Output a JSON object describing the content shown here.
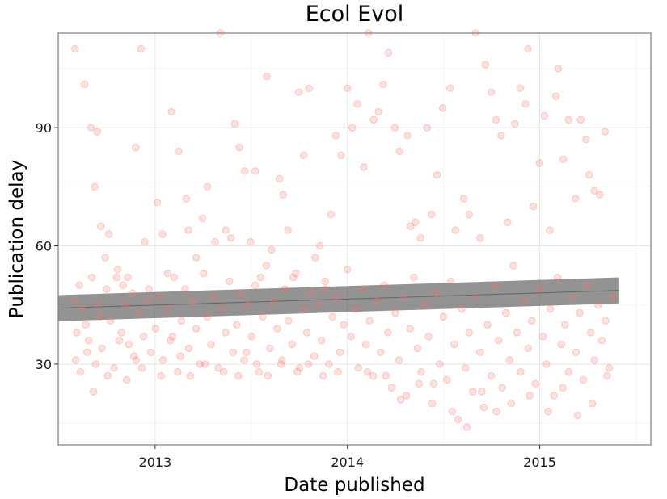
{
  "chart_data": {
    "type": "scatter",
    "title": "Ecol Evol",
    "xlabel": "Date published",
    "ylabel": "Publication delay",
    "x_type": "date",
    "xlim": [
      "2012-07-01",
      "2015-07-31"
    ],
    "ylim": [
      9.5,
      114
    ],
    "x_ticks": [
      {
        "date": "2013-01-01",
        "label": "2013"
      },
      {
        "date": "2014-01-01",
        "label": "2014"
      },
      {
        "date": "2015-01-01",
        "label": "2015"
      }
    ],
    "y_ticks": [
      30,
      60,
      90
    ],
    "grid": true,
    "point_color": "#f8766d",
    "trend_color": "#595959",
    "trend": {
      "x": [
        "2012-07-01",
        "2015-06-01"
      ],
      "y": [
        44.2,
        48.7
      ],
      "band_halfwidth": 3.3
    },
    "series": [
      {
        "points": [
          [
            "2012-08-02",
            110
          ],
          [
            "2012-08-20",
            101
          ],
          [
            "2012-09-01",
            90
          ],
          [
            "2012-09-08",
            75
          ],
          [
            "2012-09-13",
            89
          ],
          [
            "2012-09-20",
            65
          ],
          [
            "2012-09-28",
            57
          ],
          [
            "2012-10-05",
            63
          ],
          [
            "2012-10-20",
            52
          ],
          [
            "2012-11-01",
            50
          ],
          [
            "2012-11-10",
            52
          ],
          [
            "2012-11-25",
            85
          ],
          [
            "2012-12-05",
            110
          ],
          [
            "2012-12-12",
            61
          ],
          [
            "2012-12-20",
            49
          ],
          [
            "2013-01-05",
            71
          ],
          [
            "2013-01-15",
            63
          ],
          [
            "2013-01-25",
            53
          ],
          [
            "2013-02-01",
            94
          ],
          [
            "2013-02-15",
            84
          ],
          [
            "2013-03-01",
            72
          ],
          [
            "2013-03-05",
            64
          ],
          [
            "2013-03-20",
            57
          ],
          [
            "2013-04-01",
            67
          ],
          [
            "2013-04-10",
            75
          ],
          [
            "2013-04-25",
            61
          ],
          [
            "2013-05-05",
            114
          ],
          [
            "2013-05-15",
            64
          ],
          [
            "2013-05-25",
            62
          ],
          [
            "2013-06-01",
            91
          ],
          [
            "2013-06-10",
            85
          ],
          [
            "2013-06-20",
            79
          ],
          [
            "2013-07-01",
            61
          ],
          [
            "2013-07-10",
            79
          ],
          [
            "2013-07-20",
            52
          ],
          [
            "2013-08-01",
            103
          ],
          [
            "2013-08-10",
            59
          ],
          [
            "2013-08-25",
            77
          ],
          [
            "2013-09-01",
            73
          ],
          [
            "2013-09-10",
            64
          ],
          [
            "2013-09-20",
            52
          ],
          [
            "2013-10-01",
            99
          ],
          [
            "2013-10-10",
            83
          ],
          [
            "2013-10-20",
            100
          ],
          [
            "2013-11-01",
            57
          ],
          [
            "2013-11-10",
            60
          ],
          [
            "2013-11-20",
            49
          ],
          [
            "2013-12-01",
            68
          ],
          [
            "2013-12-10",
            88
          ],
          [
            "2013-12-20",
            83
          ],
          [
            "2014-01-01",
            100
          ],
          [
            "2014-01-10",
            90
          ],
          [
            "2014-01-20",
            96
          ],
          [
            "2014-02-01",
            80
          ],
          [
            "2014-02-10",
            114
          ],
          [
            "2014-02-20",
            92
          ],
          [
            "2014-03-01",
            94
          ],
          [
            "2014-03-10",
            101
          ],
          [
            "2014-03-20",
            109
          ],
          [
            "2014-04-01",
            90
          ],
          [
            "2014-04-10",
            84
          ],
          [
            "2014-04-25",
            88
          ],
          [
            "2014-05-01",
            65
          ],
          [
            "2014-05-10",
            66
          ],
          [
            "2014-05-20",
            62
          ],
          [
            "2014-06-01",
            90
          ],
          [
            "2014-06-10",
            68
          ],
          [
            "2014-06-20",
            78
          ],
          [
            "2014-07-01",
            95
          ],
          [
            "2014-07-15",
            100
          ],
          [
            "2014-07-25",
            64
          ],
          [
            "2014-08-10",
            72
          ],
          [
            "2014-08-20",
            68
          ],
          [
            "2014-09-01",
            114
          ],
          [
            "2014-09-10",
            62
          ],
          [
            "2014-09-20",
            106
          ],
          [
            "2014-10-01",
            99
          ],
          [
            "2014-10-10",
            92
          ],
          [
            "2014-10-20",
            88
          ],
          [
            "2014-11-01",
            66
          ],
          [
            "2014-11-15",
            91
          ],
          [
            "2014-11-25",
            100
          ],
          [
            "2014-12-05",
            96
          ],
          [
            "2014-12-10",
            110
          ],
          [
            "2014-12-20",
            70
          ],
          [
            "2015-01-01",
            81
          ],
          [
            "2015-01-10",
            93
          ],
          [
            "2015-01-20",
            64
          ],
          [
            "2015-02-01",
            98
          ],
          [
            "2015-02-05",
            105
          ],
          [
            "2015-02-15",
            82
          ],
          [
            "2015-02-25",
            92
          ],
          [
            "2015-03-10",
            72
          ],
          [
            "2015-03-20",
            92
          ],
          [
            "2015-03-30",
            87
          ],
          [
            "2015-04-05",
            78
          ],
          [
            "2015-04-15",
            74
          ],
          [
            "2015-04-25",
            73
          ],
          [
            "2015-05-05",
            89
          ],
          [
            "2012-08-01",
            46
          ],
          [
            "2012-08-05",
            38
          ],
          [
            "2012-08-10",
            50
          ],
          [
            "2012-08-15",
            44
          ],
          [
            "2012-08-22",
            40
          ],
          [
            "2012-08-28",
            36
          ],
          [
            "2012-09-03",
            52
          ],
          [
            "2012-09-10",
            30
          ],
          [
            "2012-09-15",
            45
          ],
          [
            "2012-09-22",
            34
          ],
          [
            "2012-10-01",
            49
          ],
          [
            "2012-10-08",
            41
          ],
          [
            "2012-10-15",
            29
          ],
          [
            "2012-10-22",
            54
          ],
          [
            "2012-10-29",
            38
          ],
          [
            "2012-11-05",
            45
          ],
          [
            "2012-11-12",
            35
          ],
          [
            "2012-11-19",
            48
          ],
          [
            "2012-11-26",
            31
          ],
          [
            "2012-12-03",
            43
          ],
          [
            "2012-12-10",
            37
          ],
          [
            "2012-12-17",
            46
          ],
          [
            "2012-12-24",
            33
          ],
          [
            "2013-01-02",
            39
          ],
          [
            "2013-01-09",
            47
          ],
          [
            "2013-01-16",
            31
          ],
          [
            "2013-01-23",
            44
          ],
          [
            "2013-01-30",
            36
          ],
          [
            "2013-02-06",
            52
          ],
          [
            "2013-02-13",
            28
          ],
          [
            "2013-02-20",
            41
          ],
          [
            "2013-02-27",
            49
          ],
          [
            "2013-03-06",
            34
          ],
          [
            "2013-03-13",
            46
          ],
          [
            "2013-03-20",
            39
          ],
          [
            "2013-03-27",
            30
          ],
          [
            "2013-04-03",
            53
          ],
          [
            "2013-04-10",
            42
          ],
          [
            "2013-04-17",
            35
          ],
          [
            "2013-04-24",
            47
          ],
          [
            "2013-05-01",
            29
          ],
          [
            "2013-05-08",
            44
          ],
          [
            "2013-05-15",
            38
          ],
          [
            "2013-05-22",
            51
          ],
          [
            "2013-05-29",
            33
          ],
          [
            "2013-06-05",
            40
          ],
          [
            "2013-06-12",
            48
          ],
          [
            "2013-06-19",
            31
          ],
          [
            "2013-06-26",
            45
          ],
          [
            "2013-07-03",
            37
          ],
          [
            "2013-07-10",
            50
          ],
          [
            "2013-07-17",
            28
          ],
          [
            "2013-07-24",
            42
          ],
          [
            "2013-07-31",
            55
          ],
          [
            "2013-08-07",
            34
          ],
          [
            "2013-08-14",
            46
          ],
          [
            "2013-08-21",
            39
          ],
          [
            "2013-08-28",
            30
          ],
          [
            "2013-09-04",
            49
          ],
          [
            "2013-09-11",
            41
          ],
          [
            "2013-09-18",
            35
          ],
          [
            "2013-09-25",
            53
          ],
          [
            "2013-10-02",
            29
          ],
          [
            "2013-10-09",
            44
          ],
          [
            "2013-10-16",
            38
          ],
          [
            "2013-10-23",
            48
          ],
          [
            "2013-10-30",
            32
          ],
          [
            "2013-11-06",
            45
          ],
          [
            "2013-11-13",
            36
          ],
          [
            "2013-11-20",
            51
          ],
          [
            "2013-11-27",
            30
          ],
          [
            "2013-12-04",
            42
          ],
          [
            "2013-12-11",
            47
          ],
          [
            "2013-12-18",
            33
          ],
          [
            "2013-12-25",
            40
          ],
          [
            "2014-01-01",
            54
          ],
          [
            "2014-01-08",
            37
          ],
          [
            "2014-01-15",
            44
          ],
          [
            "2014-01-22",
            29
          ],
          [
            "2014-01-29",
            49
          ],
          [
            "2014-02-05",
            35
          ],
          [
            "2014-02-12",
            41
          ],
          [
            "2014-02-19",
            27
          ],
          [
            "2014-02-26",
            46
          ],
          [
            "2014-03-05",
            33
          ],
          [
            "2014-03-12",
            50
          ],
          [
            "2014-03-19",
            38
          ],
          [
            "2014-03-26",
            24
          ],
          [
            "2014-04-02",
            43
          ],
          [
            "2014-04-09",
            31
          ],
          [
            "2014-04-16",
            47
          ],
          [
            "2014-04-23",
            22
          ],
          [
            "2014-04-30",
            39
          ],
          [
            "2014-05-07",
            52
          ],
          [
            "2014-05-14",
            34
          ],
          [
            "2014-05-21",
            28
          ],
          [
            "2014-05-28",
            45
          ],
          [
            "2014-06-04",
            37
          ],
          [
            "2014-06-11",
            20
          ],
          [
            "2014-06-18",
            48
          ],
          [
            "2014-06-25",
            30
          ],
          [
            "2014-07-02",
            42
          ],
          [
            "2014-07-09",
            26
          ],
          [
            "2014-07-16",
            51
          ],
          [
            "2014-07-23",
            35
          ],
          [
            "2014-07-30",
            16
          ],
          [
            "2014-08-06",
            44
          ],
          [
            "2014-08-13",
            29
          ],
          [
            "2014-08-20",
            38
          ],
          [
            "2014-08-27",
            23
          ],
          [
            "2014-09-03",
            47
          ],
          [
            "2014-09-10",
            33
          ],
          [
            "2014-09-17",
            19
          ],
          [
            "2014-09-24",
            40
          ],
          [
            "2014-10-01",
            27
          ],
          [
            "2014-10-08",
            50
          ],
          [
            "2014-10-15",
            36
          ],
          [
            "2014-10-22",
            24
          ],
          [
            "2014-10-29",
            43
          ],
          [
            "2014-11-05",
            31
          ],
          [
            "2014-11-12",
            55
          ],
          [
            "2014-11-19",
            38
          ],
          [
            "2014-11-26",
            28
          ],
          [
            "2014-12-03",
            46
          ],
          [
            "2014-12-10",
            34
          ],
          [
            "2014-12-17",
            41
          ],
          [
            "2014-12-24",
            25
          ],
          [
            "2014-12-31",
            49
          ],
          [
            "2015-01-07",
            37
          ],
          [
            "2015-01-14",
            30
          ],
          [
            "2015-01-21",
            44
          ],
          [
            "2015-01-28",
            22
          ],
          [
            "2015-02-04",
            52
          ],
          [
            "2015-02-11",
            35
          ],
          [
            "2015-02-18",
            40
          ],
          [
            "2015-02-25",
            28
          ],
          [
            "2015-03-04",
            47
          ],
          [
            "2015-03-11",
            33
          ],
          [
            "2015-03-18",
            43
          ],
          [
            "2015-03-25",
            26
          ],
          [
            "2015-04-01",
            50
          ],
          [
            "2015-04-08",
            38
          ],
          [
            "2015-04-15",
            31
          ],
          [
            "2015-04-22",
            45
          ],
          [
            "2015-04-29",
            36
          ],
          [
            "2015-05-06",
            41
          ],
          [
            "2015-05-13",
            29
          ],
          [
            "2015-05-20",
            47
          ],
          [
            "2012-08-03",
            31
          ],
          [
            "2012-08-12",
            28
          ],
          [
            "2012-08-25",
            33
          ],
          [
            "2012-09-06",
            23
          ],
          [
            "2012-09-18",
            42
          ],
          [
            "2012-10-03",
            27
          ],
          [
            "2012-10-25",
            36
          ],
          [
            "2012-11-08",
            26
          ],
          [
            "2012-11-22",
            32
          ],
          [
            "2012-12-07",
            29
          ],
          [
            "2013-01-12",
            27
          ],
          [
            "2013-02-03",
            37
          ],
          [
            "2013-02-18",
            32
          ],
          [
            "2013-03-09",
            27
          ],
          [
            "2013-04-06",
            30
          ],
          [
            "2013-05-11",
            28
          ],
          [
            "2013-06-08",
            27
          ],
          [
            "2013-06-23",
            33
          ],
          [
            "2013-07-13",
            30
          ],
          [
            "2013-08-03",
            27
          ],
          [
            "2013-08-30",
            31
          ],
          [
            "2013-09-28",
            28
          ],
          [
            "2013-10-19",
            30
          ],
          [
            "2013-11-16",
            27
          ],
          [
            "2013-12-14",
            28
          ],
          [
            "2014-02-08",
            28
          ],
          [
            "2014-03-15",
            27
          ],
          [
            "2014-04-12",
            21
          ],
          [
            "2014-05-17",
            25
          ],
          [
            "2014-06-14",
            25
          ],
          [
            "2014-07-19",
            18
          ],
          [
            "2014-08-16",
            14
          ],
          [
            "2014-09-13",
            23
          ],
          [
            "2014-10-11",
            18
          ],
          [
            "2014-11-08",
            20
          ],
          [
            "2014-12-13",
            22
          ],
          [
            "2015-01-17",
            18
          ],
          [
            "2015-02-14",
            24
          ],
          [
            "2015-03-14",
            17
          ],
          [
            "2015-04-11",
            20
          ],
          [
            "2015-05-09",
            27
          ]
        ]
      }
    ]
  }
}
